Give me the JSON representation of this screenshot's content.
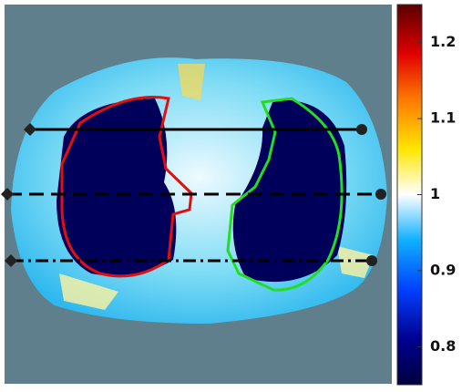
{
  "chart_data": {
    "type": "heatmap",
    "ylim": [
      0.75,
      1.25
    ],
    "yticks": [
      0.8,
      0.9,
      1,
      1.1,
      1.2
    ]
  }
}
